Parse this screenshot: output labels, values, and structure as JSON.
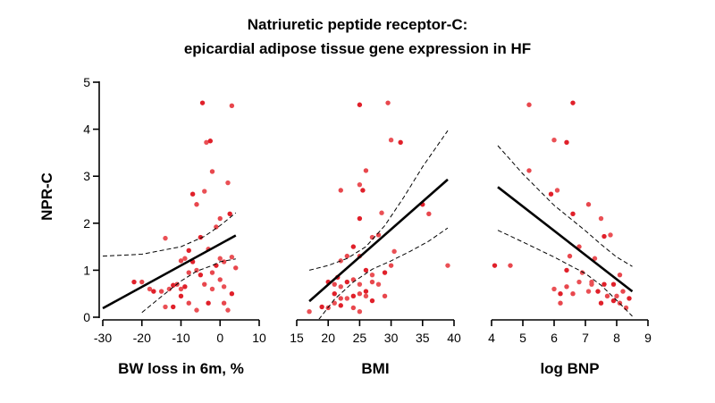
{
  "chart_data": {
    "type": "scatter",
    "title_lines": [
      "Natriuretic peptide receptor-C:",
      "epicardial adipose tissue gene expression in HF"
    ],
    "ylabel": "NPR-C",
    "ylim": [
      0,
      5
    ],
    "yticks": [
      0,
      1,
      2,
      3,
      4,
      5
    ],
    "point_colors": [
      "#e0202a",
      "#e8474d",
      "#ea5055"
    ],
    "panels": [
      {
        "name": "bw",
        "xlabel": "BW loss in 6m, %",
        "xlim": [
          -30,
          10
        ],
        "xticks": [
          -30,
          -20,
          -10,
          0,
          10
        ],
        "points": [
          [
            -4.5,
            4.56
          ],
          [
            3,
            4.5
          ],
          [
            -3.5,
            3.72
          ],
          [
            -2.5,
            3.75
          ],
          [
            -2,
            3.1
          ],
          [
            2,
            2.86
          ],
          [
            -7,
            2.62
          ],
          [
            -6,
            2.4
          ],
          [
            -4,
            2.68
          ],
          [
            2.5,
            2.2
          ],
          [
            0,
            2.1
          ],
          [
            -14,
            1.68
          ],
          [
            -5,
            1.7
          ],
          [
            -1,
            1.92
          ],
          [
            -3,
            1.45
          ],
          [
            -8,
            1.42
          ],
          [
            -10,
            1.2
          ],
          [
            -9,
            1.25
          ],
          [
            -7,
            1.18
          ],
          [
            1,
            1.18
          ],
          [
            3,
            1.28
          ],
          [
            -22,
            0.75
          ],
          [
            -20,
            0.75
          ],
          [
            -18,
            0.6
          ],
          [
            -17,
            0.55
          ],
          [
            -15,
            0.55
          ],
          [
            -13,
            0.6
          ],
          [
            -12,
            0.68
          ],
          [
            -11,
            0.7
          ],
          [
            -10,
            0.6
          ],
          [
            -9,
            0.65
          ],
          [
            -8,
            0.95
          ],
          [
            -6,
            1
          ],
          [
            -5,
            0.9
          ],
          [
            -4,
            0.7
          ],
          [
            -2,
            0.6
          ],
          [
            -1,
            1.1
          ],
          [
            0,
            0.8
          ],
          [
            1,
            0.65
          ],
          [
            3,
            0.5
          ],
          [
            4,
            1.05
          ],
          [
            -14,
            0.22
          ],
          [
            -12,
            0.22
          ],
          [
            -8,
            0.3
          ],
          [
            -6,
            0.15
          ],
          [
            -3,
            0.3
          ],
          [
            1,
            0.3
          ],
          [
            2,
            0.15
          ],
          [
            -10,
            0.45
          ],
          [
            -2,
            0.95
          ],
          [
            0,
            1.25
          ]
        ],
        "fit": [
          [
            -30,
            0.19
          ],
          [
            4,
            1.74
          ]
        ],
        "ci_upper": [
          [
            -30,
            1.3
          ],
          [
            -20,
            1.34
          ],
          [
            -10,
            1.5
          ],
          [
            -4,
            1.72
          ],
          [
            0,
            1.95
          ],
          [
            4,
            2.22
          ]
        ],
        "ci_lower": [
          [
            -20,
            0.1
          ],
          [
            -15,
            0.44
          ],
          [
            -10,
            0.77
          ],
          [
            -6,
            0.98
          ],
          [
            -2,
            1.1
          ],
          [
            0,
            1.18
          ],
          [
            4,
            1.24
          ]
        ]
      },
      {
        "name": "bmi",
        "xlabel": "BMI",
        "xlim": [
          15,
          40
        ],
        "xticks": [
          15,
          20,
          25,
          30,
          35,
          40
        ],
        "points": [
          [
            25,
            4.52
          ],
          [
            29.5,
            4.56
          ],
          [
            30,
            3.77
          ],
          [
            31.5,
            3.72
          ],
          [
            26,
            3.12
          ],
          [
            25,
            2.82
          ],
          [
            25.5,
            2.7
          ],
          [
            22,
            2.7
          ],
          [
            28.5,
            2.22
          ],
          [
            25,
            2.1
          ],
          [
            28,
            1.75
          ],
          [
            27,
            1.7
          ],
          [
            24,
            1.5
          ],
          [
            23,
            1.3
          ],
          [
            22,
            1.2
          ],
          [
            26,
            1
          ],
          [
            25,
            1.3
          ],
          [
            27,
            0.9
          ],
          [
            29,
            0.95
          ],
          [
            30,
            1.1
          ],
          [
            30.5,
            1.4
          ],
          [
            35,
            2.4
          ],
          [
            36,
            2.2
          ],
          [
            39,
            1.1
          ],
          [
            20,
            0.75
          ],
          [
            21,
            0.7
          ],
          [
            22,
            0.65
          ],
          [
            23,
            0.75
          ],
          [
            24,
            0.8
          ],
          [
            25,
            0.7
          ],
          [
            26,
            0.55
          ],
          [
            27,
            0.75
          ],
          [
            28,
            0.7
          ],
          [
            21,
            0.5
          ],
          [
            22,
            0.4
          ],
          [
            23,
            0.4
          ],
          [
            24,
            0.45
          ],
          [
            25,
            0.5
          ],
          [
            26,
            0.45
          ],
          [
            27,
            0.35
          ],
          [
            29,
            0.45
          ],
          [
            17,
            0.12
          ],
          [
            19,
            0.22
          ],
          [
            20,
            0.2
          ],
          [
            21,
            0.3
          ],
          [
            22,
            0.25
          ],
          [
            24,
            0.2
          ],
          [
            25,
            0.12
          ],
          [
            21.5,
            0.85
          ]
        ],
        "fit": [
          [
            17,
            0.34
          ],
          [
            39,
            2.93
          ]
        ],
        "ci_upper": [
          [
            17,
            1
          ],
          [
            20,
            1.1
          ],
          [
            23,
            1.25
          ],
          [
            26,
            1.5
          ],
          [
            29,
            1.95
          ],
          [
            32,
            2.55
          ],
          [
            35,
            3.2
          ],
          [
            39,
            3.97
          ]
        ],
        "ci_lower": [
          [
            18.5,
            -0.05
          ],
          [
            21,
            0.38
          ],
          [
            24,
            0.75
          ],
          [
            27,
            1.02
          ],
          [
            30,
            1.2
          ],
          [
            33,
            1.4
          ],
          [
            36,
            1.62
          ],
          [
            39,
            1.9
          ]
        ]
      },
      {
        "name": "bnp",
        "xlabel": "log BNP",
        "xlim": [
          4,
          9
        ],
        "xticks": [
          4,
          5,
          6,
          7,
          8,
          9
        ],
        "points": [
          [
            6.6,
            4.56
          ],
          [
            5.2,
            4.52
          ],
          [
            6,
            3.77
          ],
          [
            6.4,
            3.72
          ],
          [
            5.2,
            3.12
          ],
          [
            6.1,
            2.7
          ],
          [
            5.9,
            2.62
          ],
          [
            7.1,
            2.4
          ],
          [
            7.5,
            2.1
          ],
          [
            6.6,
            2.2
          ],
          [
            6.8,
            1.5
          ],
          [
            7.8,
            1.75
          ],
          [
            7.6,
            1.72
          ],
          [
            6.5,
            1.3
          ],
          [
            7.3,
            1.25
          ],
          [
            4.1,
            1.1
          ],
          [
            4.6,
            1.1
          ],
          [
            6.9,
            0.95
          ],
          [
            6.4,
            1
          ],
          [
            8.1,
            0.9
          ],
          [
            7.2,
            0.7
          ],
          [
            7.9,
            0.7
          ],
          [
            8.2,
            0.55
          ],
          [
            6,
            0.6
          ],
          [
            6.2,
            0.5
          ],
          [
            6.6,
            0.5
          ],
          [
            7.1,
            0.55
          ],
          [
            7.4,
            0.55
          ],
          [
            7.7,
            0.45
          ],
          [
            8,
            0.45
          ],
          [
            8.4,
            0.4
          ],
          [
            6.4,
            0.65
          ],
          [
            6.8,
            0.75
          ],
          [
            7.6,
            0.7
          ],
          [
            8.1,
            0.3
          ],
          [
            8.3,
            0.2
          ],
          [
            7.9,
            0.35
          ],
          [
            6.2,
            0.3
          ],
          [
            7.2,
            0.75
          ],
          [
            7.5,
            0.3
          ]
        ],
        "fit": [
          [
            4.2,
            2.77
          ],
          [
            8.5,
            0.55
          ]
        ],
        "ci_upper": [
          [
            4.2,
            3.65
          ],
          [
            5,
            3.05
          ],
          [
            6,
            2.38
          ],
          [
            7,
            1.84
          ],
          [
            7.5,
            1.55
          ],
          [
            8,
            1.28
          ],
          [
            8.5,
            1.08
          ]
        ],
        "ci_lower": [
          [
            4.2,
            1.85
          ],
          [
            5,
            1.6
          ],
          [
            6,
            1.28
          ],
          [
            7,
            0.93
          ],
          [
            7.5,
            0.68
          ],
          [
            8,
            0.36
          ],
          [
            8.5,
            0.02
          ]
        ]
      }
    ]
  }
}
